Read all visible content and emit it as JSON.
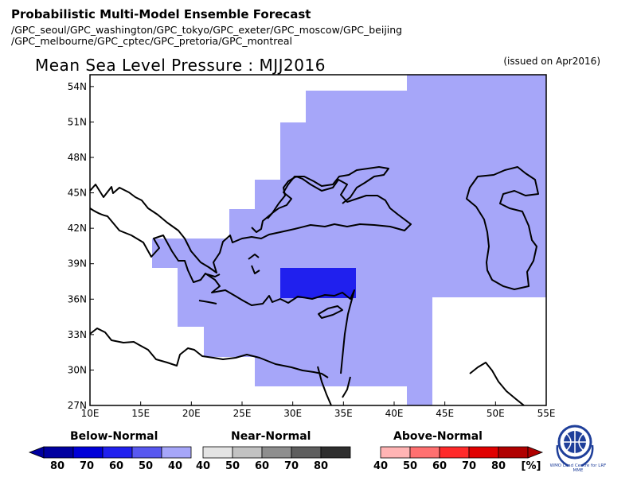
{
  "header": {
    "title": "Probabilistic Multi-Model Ensemble Forecast",
    "gpc_line1": "/GPC_seoul/GPC_washington/GPC_tokyo/GPC_exeter/GPC_moscow/GPC_beijing",
    "gpc_line2": "/GPC_melbourne/GPC_cptec/GPC_pretoria/GPC_montreal"
  },
  "map": {
    "title": "Mean Sea Level Pressure : MJJ2016",
    "issued": "(issued on Apr2016)",
    "lon_range": [
      10,
      55
    ],
    "lat_range": [
      27,
      55
    ],
    "x_ticks": [
      "10E",
      "15E",
      "20E",
      "25E",
      "30E",
      "35E",
      "40E",
      "45E",
      "50E",
      "55E"
    ],
    "y_ticks": [
      "27N",
      "30N",
      "33N",
      "36N",
      "39N",
      "42N",
      "45N",
      "48N",
      "51N",
      "54N"
    ],
    "shading": {
      "below_40_50": "#a6a6f9",
      "below_50_60": "#2020ee"
    }
  },
  "legend": {
    "below": {
      "title": "Below-Normal",
      "labels": [
        "80",
        "70",
        "60",
        "50",
        "40"
      ],
      "colors": [
        "#0000a0",
        "#0000d8",
        "#2020ee",
        "#5858f0",
        "#a6a6f9"
      ]
    },
    "near": {
      "title": "Near-Normal",
      "labels": [
        "40",
        "50",
        "60",
        "70",
        "80"
      ],
      "colors": [
        "#e4e4e4",
        "#c2c2c2",
        "#8e8e8e",
        "#5e5e5e",
        "#2e2e2e"
      ]
    },
    "above": {
      "title": "Above-Normal",
      "labels": [
        "40",
        "50",
        "60",
        "70",
        "80"
      ],
      "unit": "[%]",
      "colors": [
        "#ffb4b4",
        "#ff7070",
        "#ff2a2a",
        "#e00000",
        "#b00000"
      ]
    }
  },
  "logo": {
    "text": "WMO Lead Centre for LRF MME"
  }
}
